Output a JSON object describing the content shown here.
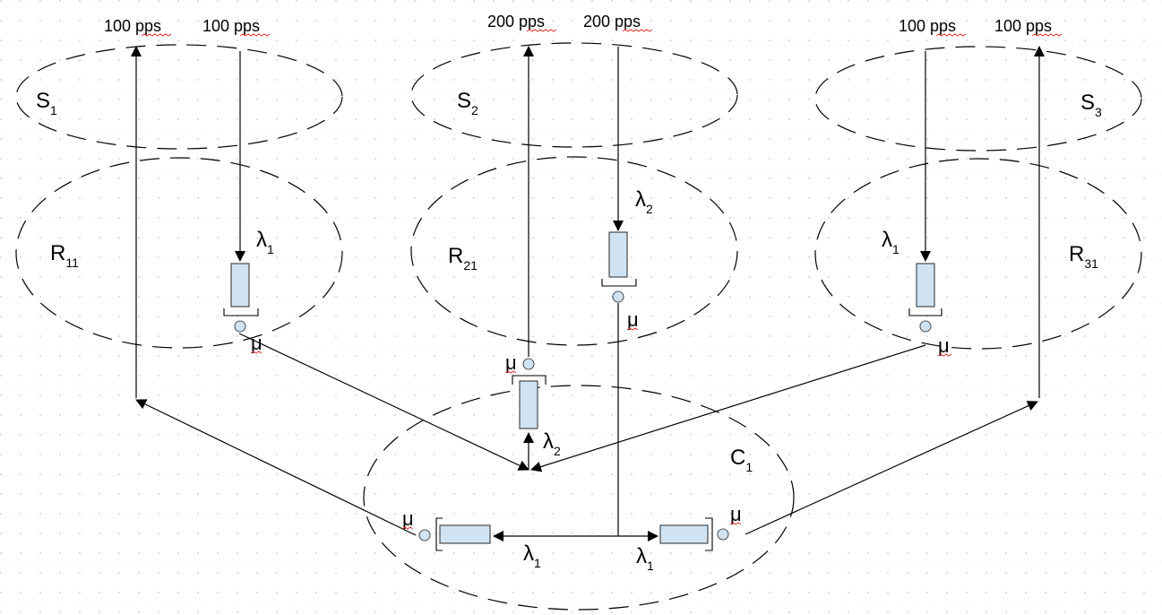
{
  "sources": {
    "s1": {
      "letter": "S",
      "sub": "1",
      "in_rate": "100 pps",
      "out_rate": "100 pps"
    },
    "s2": {
      "letter": "S",
      "sub": "2",
      "in_rate": "200 pps",
      "out_rate": "200 pps"
    },
    "s3": {
      "letter": "S",
      "sub": "3",
      "in_rate": "100 pps",
      "out_rate": "100 pps"
    }
  },
  "routers": {
    "r11": {
      "letter": "R",
      "sub": "11",
      "lambda": "λ",
      "lambda_sub": "1",
      "mu": "μ"
    },
    "r21": {
      "letter": "R",
      "sub": "21",
      "lambda": "λ",
      "lambda_sub": "2",
      "mu": "μ"
    },
    "r31": {
      "letter": "R",
      "sub": "31",
      "lambda": "λ",
      "lambda_sub": "1",
      "mu": "μ"
    }
  },
  "core": {
    "c1": {
      "letter": "C",
      "sub": "1",
      "top_mu": "μ",
      "top_lambda": "λ",
      "top_lambda_sub": "2",
      "left_mu": "μ",
      "left_lambda": "λ",
      "left_lambda_sub": "1",
      "right_mu": "μ",
      "right_lambda": "λ",
      "right_lambda_sub": "1"
    }
  },
  "style": {
    "queue_fill": "#cfe3f3",
    "grid_dot": "#c8c8c8",
    "spell_underline": "#e03030"
  }
}
